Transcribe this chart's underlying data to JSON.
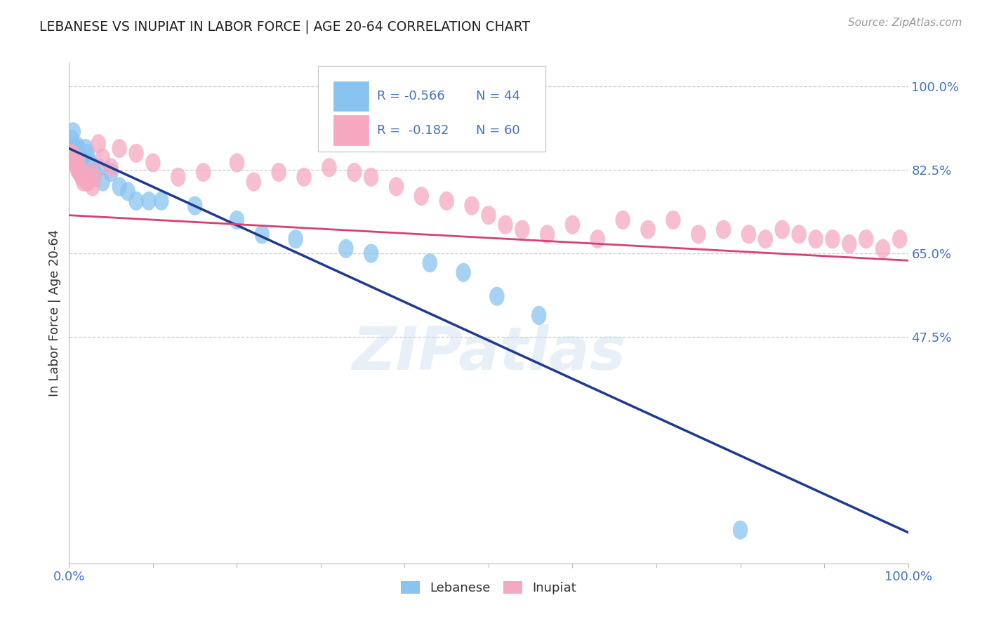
{
  "title": "LEBANESE VS INUPIAT IN LABOR FORCE | AGE 20-64 CORRELATION CHART",
  "source": "Source: ZipAtlas.com",
  "ylabel": "In Labor Force | Age 20-64",
  "xlim": [
    0.0,
    1.0
  ],
  "ylim": [
    0.0,
    1.05
  ],
  "yticks": [
    0.475,
    0.65,
    0.825,
    1.0
  ],
  "ytick_labels": [
    "47.5%",
    "65.0%",
    "82.5%",
    "100.0%"
  ],
  "xtick_labels": [
    "0.0%",
    "",
    "",
    "",
    "",
    "",
    "",
    "",
    "",
    "",
    "100.0%"
  ],
  "xticks": [
    0.0,
    0.1,
    0.2,
    0.3,
    0.4,
    0.5,
    0.6,
    0.7,
    0.8,
    0.9,
    1.0
  ],
  "legend_r_blue": "R = -0.566",
  "legend_n_blue": "N = 44",
  "legend_r_pink": "R =  -0.182",
  "legend_n_pink": "N = 60",
  "legend_label_blue": "Lebanese",
  "legend_label_pink": "Inupiat",
  "blue_color": "#89C4F0",
  "pink_color": "#F5A8C0",
  "blue_line_color": "#1F3A8F",
  "pink_line_color": "#D94070",
  "title_color": "#222222",
  "axis_label_color": "#333333",
  "tick_color": "#4472C4",
  "grid_color": "#CCCCCC",
  "watermark": "ZIPatlas",
  "background_color": "#FFFFFF",
  "blue_line_x0": 0.0,
  "blue_line_y0": 0.87,
  "blue_line_x1": 1.0,
  "blue_line_y1": 0.065,
  "pink_line_x0": 0.0,
  "pink_line_y0": 0.73,
  "pink_line_x1": 1.0,
  "pink_line_y1": 0.635,
  "blue_x": [
    0.003,
    0.004,
    0.005,
    0.005,
    0.006,
    0.006,
    0.007,
    0.007,
    0.008,
    0.008,
    0.009,
    0.009,
    0.01,
    0.01,
    0.01,
    0.01,
    0.011,
    0.012,
    0.013,
    0.015,
    0.017,
    0.02,
    0.022,
    0.025,
    0.03,
    0.035,
    0.04,
    0.05,
    0.06,
    0.07,
    0.08,
    0.095,
    0.11,
    0.15,
    0.2,
    0.23,
    0.27,
    0.33,
    0.36,
    0.43,
    0.47,
    0.51,
    0.56,
    0.8
  ],
  "blue_y": [
    0.89,
    0.87,
    0.905,
    0.87,
    0.86,
    0.85,
    0.87,
    0.86,
    0.87,
    0.86,
    0.86,
    0.855,
    0.875,
    0.87,
    0.86,
    0.85,
    0.86,
    0.845,
    0.83,
    0.85,
    0.84,
    0.87,
    0.86,
    0.84,
    0.82,
    0.83,
    0.8,
    0.82,
    0.79,
    0.78,
    0.76,
    0.76,
    0.76,
    0.75,
    0.72,
    0.69,
    0.68,
    0.66,
    0.65,
    0.63,
    0.61,
    0.56,
    0.52,
    0.07
  ],
  "pink_x": [
    0.003,
    0.004,
    0.005,
    0.006,
    0.007,
    0.008,
    0.009,
    0.01,
    0.01,
    0.011,
    0.012,
    0.013,
    0.015,
    0.017,
    0.019,
    0.021,
    0.023,
    0.026,
    0.028,
    0.03,
    0.035,
    0.04,
    0.05,
    0.06,
    0.08,
    0.1,
    0.13,
    0.16,
    0.2,
    0.22,
    0.25,
    0.28,
    0.31,
    0.34,
    0.36,
    0.39,
    0.42,
    0.45,
    0.48,
    0.5,
    0.52,
    0.54,
    0.57,
    0.6,
    0.63,
    0.66,
    0.69,
    0.72,
    0.75,
    0.78,
    0.81,
    0.83,
    0.85,
    0.87,
    0.89,
    0.91,
    0.93,
    0.95,
    0.97,
    0.99
  ],
  "pink_y": [
    0.86,
    0.855,
    0.85,
    0.845,
    0.84,
    0.85,
    0.84,
    0.83,
    0.825,
    0.84,
    0.82,
    0.82,
    0.81,
    0.8,
    0.81,
    0.8,
    0.8,
    0.82,
    0.79,
    0.81,
    0.88,
    0.85,
    0.83,
    0.87,
    0.86,
    0.84,
    0.81,
    0.82,
    0.84,
    0.8,
    0.82,
    0.81,
    0.83,
    0.82,
    0.81,
    0.79,
    0.77,
    0.76,
    0.75,
    0.73,
    0.71,
    0.7,
    0.69,
    0.71,
    0.68,
    0.72,
    0.7,
    0.72,
    0.69,
    0.7,
    0.69,
    0.68,
    0.7,
    0.69,
    0.68,
    0.68,
    0.67,
    0.68,
    0.66,
    0.68
  ]
}
